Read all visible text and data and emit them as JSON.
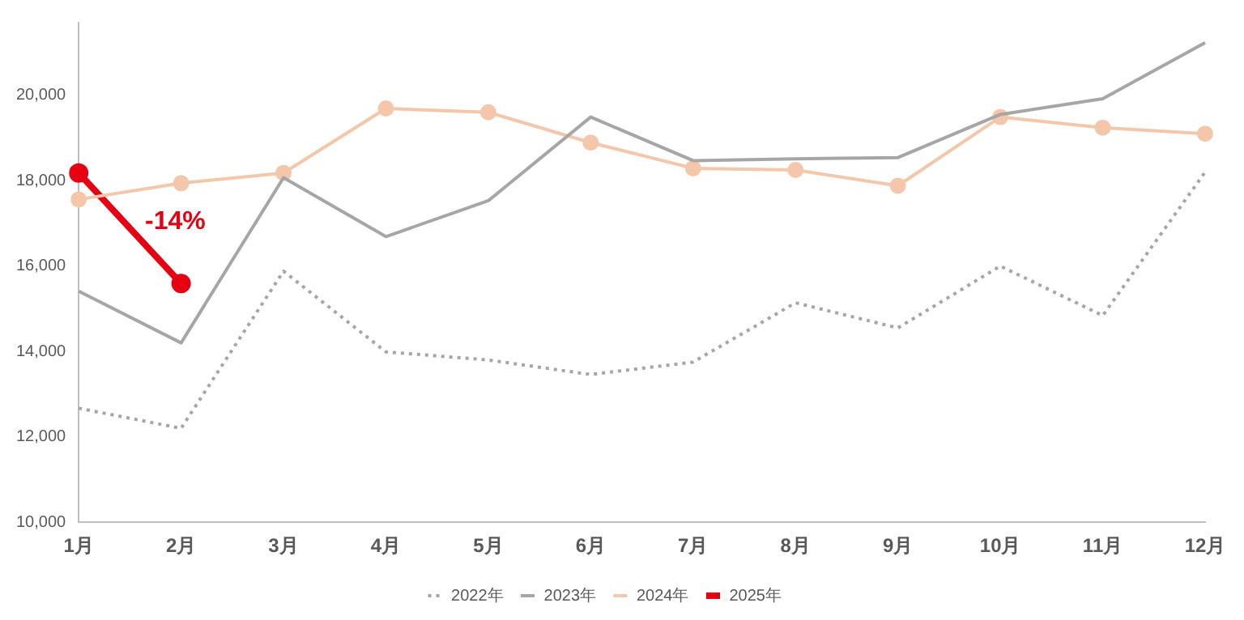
{
  "chart_data": {
    "type": "line",
    "categories": [
      "1月",
      "2月",
      "3月",
      "4月",
      "5月",
      "6月",
      "7月",
      "8月",
      "9月",
      "10月",
      "11月",
      "12月"
    ],
    "ylim": [
      10000,
      21700
    ],
    "yticks": [
      {
        "value": 10000,
        "label": "10,000"
      },
      {
        "value": 12000,
        "label": "12,000"
      },
      {
        "value": 14000,
        "label": "14,000"
      },
      {
        "value": 16000,
        "label": "16,000"
      },
      {
        "value": 18000,
        "label": "18,000"
      },
      {
        "value": 20000,
        "label": "20,000"
      }
    ],
    "grid": false,
    "legend": "bottom",
    "series": [
      {
        "name": "2022年",
        "color": "#a6a6a6",
        "line_style": "dotted",
        "marker": "none",
        "values": [
          12670,
          12200,
          15880,
          13990,
          13800,
          13460,
          13750,
          15140,
          14550,
          16000,
          14840,
          18200
        ]
      },
      {
        "name": "2023年",
        "color": "#a6a6a6",
        "line_style": "solid",
        "marker": "none",
        "values": [
          15410,
          14200,
          18070,
          16690,
          17530,
          19490,
          18470,
          18510,
          18540,
          19550,
          19920,
          21230
        ]
      },
      {
        "name": "2024年",
        "color": "#f4c7aa",
        "line_style": "solid",
        "marker": "circle",
        "values": [
          17560,
          17940,
          18180,
          19690,
          19600,
          18890,
          18290,
          18250,
          17880,
          19490,
          19240,
          19100
        ]
      },
      {
        "name": "2025年",
        "color": "#e60012",
        "line_style": "solid",
        "marker": "circle",
        "values": [
          18180,
          15590,
          null,
          null,
          null,
          null,
          null,
          null,
          null,
          null,
          null,
          null
        ]
      }
    ],
    "annotations": [
      "-14%"
    ]
  }
}
